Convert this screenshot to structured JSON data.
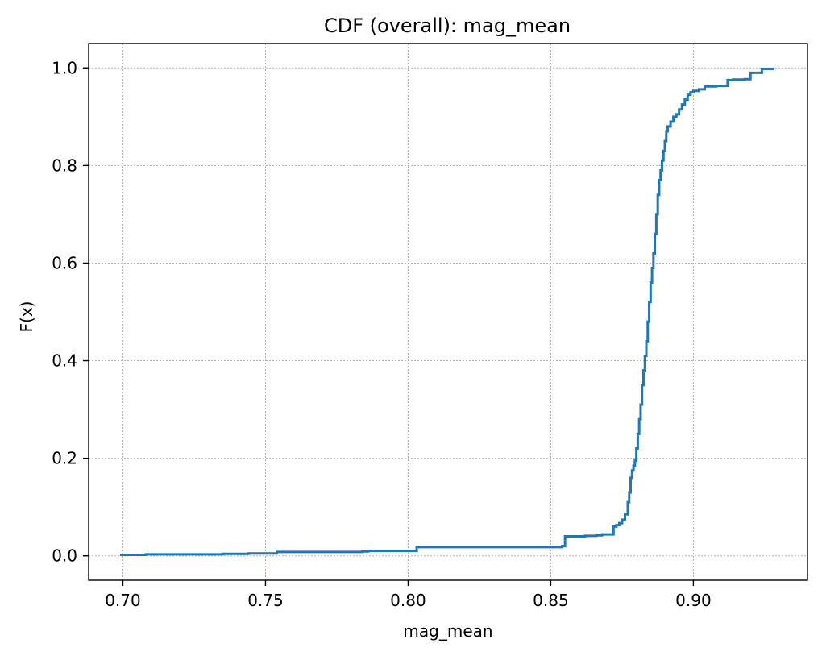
{
  "chart_data": {
    "type": "line",
    "drawstyle": "steps-post",
    "title": "CDF (overall): mag_mean",
    "xlabel": "mag_mean",
    "ylabel": "F(x)",
    "xlim": [
      0.688,
      0.94
    ],
    "ylim": [
      -0.05,
      1.05
    ],
    "xticks": [
      0.7,
      0.75,
      0.8,
      0.85,
      0.9
    ],
    "xtick_labels": [
      "0.70",
      "0.75",
      "0.80",
      "0.85",
      "0.90"
    ],
    "yticks": [
      0.0,
      0.2,
      0.4,
      0.6,
      0.8,
      1.0
    ],
    "ytick_labels": [
      "0.0",
      "0.2",
      "0.4",
      "0.6",
      "0.8",
      "1.0"
    ],
    "grid": true,
    "line_color": "#1f77b4",
    "series": [
      {
        "x": [
          0.699,
          0.708,
          0.735,
          0.744,
          0.754,
          0.784,
          0.786,
          0.803,
          0.854,
          0.855,
          0.862,
          0.866,
          0.868,
          0.872,
          0.873,
          0.874,
          0.875,
          0.876,
          0.877,
          0.8775,
          0.878,
          0.8785,
          0.879,
          0.8795,
          0.88,
          0.8805,
          0.881,
          0.8815,
          0.882,
          0.8825,
          0.883,
          0.8835,
          0.884,
          0.8845,
          0.885,
          0.8855,
          0.886,
          0.8865,
          0.887,
          0.8875,
          0.888,
          0.8885,
          0.889,
          0.8895,
          0.89,
          0.8905,
          0.891,
          0.892,
          0.893,
          0.894,
          0.895,
          0.896,
          0.897,
          0.898,
          0.899,
          0.9,
          0.902,
          0.904,
          0.908,
          0.912,
          0.914,
          0.918,
          0.92,
          0.924,
          0.928
        ],
        "y": [
          0.002,
          0.003,
          0.004,
          0.005,
          0.008,
          0.009,
          0.01,
          0.018,
          0.02,
          0.04,
          0.041,
          0.042,
          0.044,
          0.06,
          0.063,
          0.067,
          0.074,
          0.085,
          0.11,
          0.13,
          0.16,
          0.175,
          0.185,
          0.195,
          0.22,
          0.25,
          0.28,
          0.31,
          0.35,
          0.38,
          0.41,
          0.44,
          0.48,
          0.52,
          0.56,
          0.59,
          0.62,
          0.66,
          0.7,
          0.74,
          0.77,
          0.79,
          0.81,
          0.83,
          0.85,
          0.87,
          0.88,
          0.89,
          0.9,
          0.905,
          0.915,
          0.925,
          0.935,
          0.945,
          0.95,
          0.953,
          0.956,
          0.962,
          0.963,
          0.975,
          0.976,
          0.977,
          0.99,
          0.998,
          1.0
        ]
      }
    ]
  }
}
